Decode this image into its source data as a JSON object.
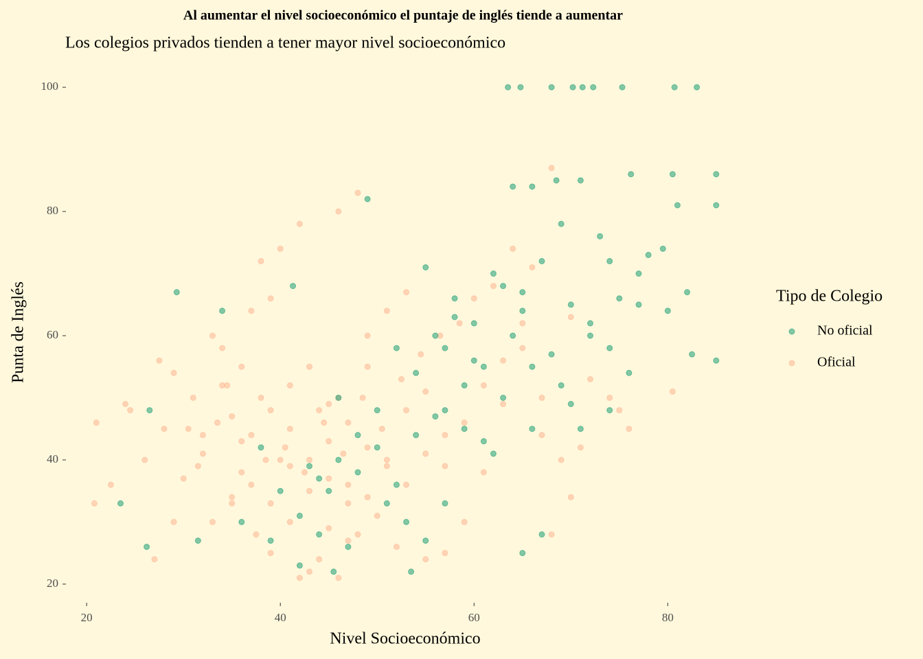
{
  "chart_data": {
    "type": "scatter",
    "title": "Al aumentar el nivel socioeconómico el puntaje de inglés tiende a aumentar",
    "subtitle": "Los colegios privados tienden a tener mayor nivel socioeconómico",
    "x_label": "Nivel Socioeconómico",
    "y_label": "Punta de Inglés",
    "legend_title": "Tipo de Colegio",
    "legend_position": "right",
    "alpha": 0.55,
    "xlim": [
      18.5,
      86.5
    ],
    "ylim": [
      18,
      102
    ],
    "xticks": [
      20,
      40,
      60,
      80
    ],
    "yticks": [
      20,
      40,
      60,
      80,
      100
    ],
    "series": [
      {
        "name": "No oficial",
        "color": "#1b9e77",
        "x": [
          63.5,
          64.8,
          68,
          70.2,
          71.2,
          72.3,
          75.3,
          80.7,
          83,
          76.2,
          80.5,
          85,
          85,
          29.3,
          23.5,
          26.5,
          26.2,
          31.5,
          34,
          41.3,
          42,
          45.5,
          53.5,
          85,
          82.5,
          49,
          64,
          66,
          68.5,
          69,
          71,
          73,
          74,
          78,
          79.5,
          81,
          82,
          75,
          77,
          80,
          60,
          62,
          58,
          57,
          55,
          56,
          61,
          63,
          65,
          67,
          70,
          72,
          59,
          54,
          52,
          50,
          48,
          46,
          44,
          42,
          40,
          38,
          36,
          47,
          51,
          53,
          57,
          59,
          61,
          63,
          66,
          68,
          70,
          72,
          74,
          76,
          69,
          67,
          65,
          62,
          60,
          58,
          56,
          54,
          44,
          46,
          48,
          50,
          52,
          55,
          57,
          64,
          66,
          71,
          74,
          77,
          39,
          43,
          45,
          65
        ],
        "values": [
          100,
          100,
          100,
          100,
          100,
          100,
          100,
          100,
          100,
          86,
          86,
          86,
          81,
          67,
          33,
          48,
          26,
          27,
          64,
          68,
          23,
          22,
          22,
          56,
          57,
          82,
          84,
          84,
          85,
          78,
          85,
          76,
          72,
          73,
          74,
          81,
          67,
          66,
          70,
          64,
          62,
          70,
          66,
          58,
          71,
          60,
          55,
          68,
          64,
          72,
          65,
          60,
          52,
          54,
          58,
          48,
          44,
          40,
          37,
          31,
          35,
          42,
          30,
          26,
          33,
          30,
          48,
          45,
          43,
          50,
          55,
          57,
          49,
          62,
          58,
          54,
          52,
          28,
          25,
          41,
          56,
          63,
          47,
          44,
          28,
          50,
          38,
          42,
          36,
          27,
          33,
          60,
          45,
          45,
          48,
          65,
          27,
          39,
          35,
          67
        ]
      },
      {
        "name": "Oficial",
        "color": "#fdb693",
        "x": [
          21,
          20.8,
          22.5,
          24,
          24.5,
          26,
          27,
          27.5,
          28,
          29,
          30,
          31,
          32,
          33,
          34,
          35,
          36,
          37,
          38,
          39,
          40,
          41,
          42,
          43,
          44,
          45,
          46,
          47,
          48,
          49,
          38.5,
          36,
          35,
          33.5,
          32,
          30.5,
          29,
          31.5,
          34.5,
          37.5,
          40.5,
          42.5,
          44.5,
          46.5,
          48.5,
          50.5,
          52.5,
          54.5,
          56.5,
          58.5,
          39,
          41,
          43,
          45,
          47,
          49,
          51,
          53,
          55,
          57,
          60,
          62,
          64,
          66,
          68,
          70,
          63,
          65,
          67,
          61,
          72,
          74,
          75,
          76,
          80.5,
          70,
          68,
          59,
          57,
          55,
          52,
          50,
          48,
          46,
          44,
          42,
          40,
          38,
          36,
          34,
          33,
          35,
          37,
          39,
          41,
          43,
          45,
          47,
          49,
          51,
          53,
          55,
          57,
          59,
          61,
          63,
          65,
          67,
          69,
          71,
          37,
          39,
          41,
          43,
          45,
          47,
          49,
          51,
          53,
          46
        ],
        "values": [
          46,
          33,
          36,
          49,
          48,
          40,
          24,
          56,
          45,
          54,
          37,
          50,
          44,
          60,
          52,
          47,
          38,
          64,
          72,
          66,
          74,
          45,
          78,
          40,
          48,
          43,
          50,
          36,
          83,
          55,
          40,
          43,
          33,
          46,
          41,
          45,
          30,
          39,
          52,
          28,
          42,
          38,
          46,
          41,
          50,
          45,
          53,
          57,
          60,
          62,
          25,
          30,
          22,
          29,
          27,
          34,
          39,
          48,
          51,
          44,
          66,
          68,
          74,
          71,
          87,
          63,
          56,
          58,
          50,
          38,
          53,
          50,
          48,
          45,
          51,
          34,
          28,
          30,
          25,
          24,
          26,
          31,
          28,
          21,
          24,
          21,
          40,
          50,
          55,
          58,
          30,
          34,
          44,
          48,
          52,
          55,
          49,
          46,
          42,
          40,
          36,
          41,
          39,
          46,
          52,
          49,
          62,
          44,
          40,
          42,
          36,
          33,
          39,
          35,
          37,
          33,
          60,
          64,
          67,
          80
        ]
      }
    ]
  }
}
